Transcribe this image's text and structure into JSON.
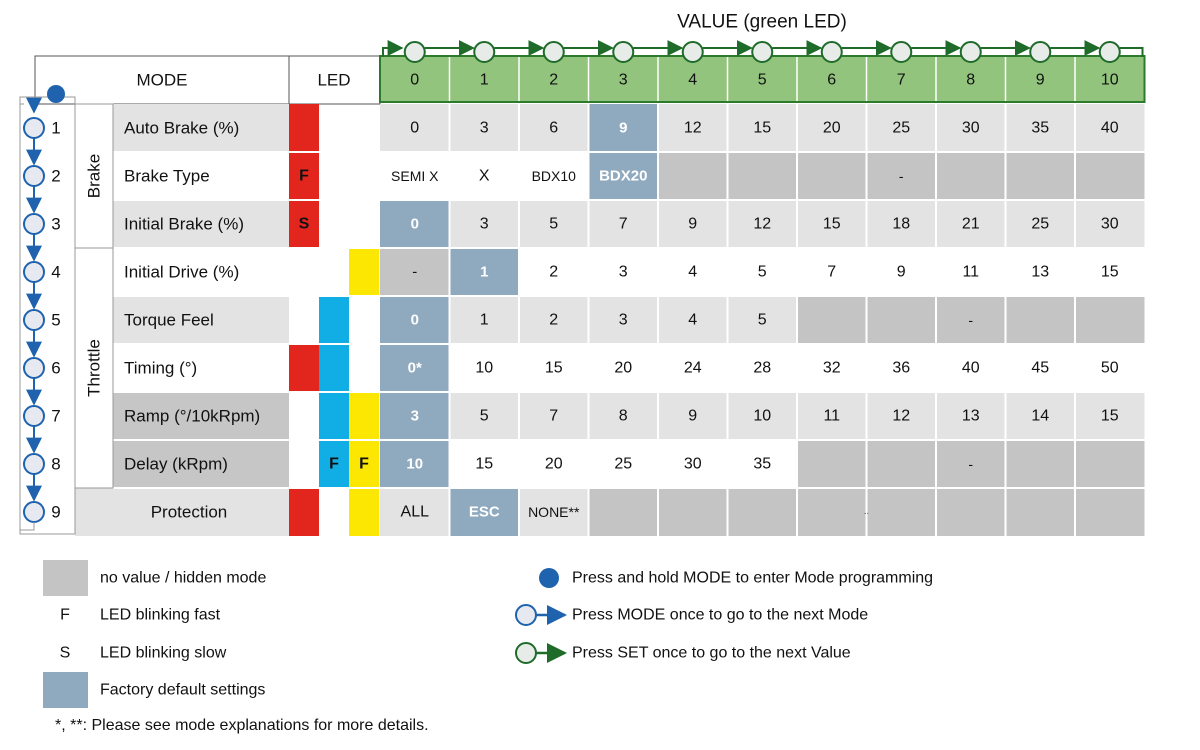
{
  "title": "VALUE (green LED)",
  "colors": {
    "green": "#93c47d",
    "green_border": "#2d7a2d",
    "green_dark": "#1f6b2a",
    "blue": "#1f62ad",
    "gray_row": "#e3e3e3",
    "gray_label": "#c6c6c6",
    "hidden": "#c4c4c4",
    "default": "#8faabf",
    "red": "#e3261d",
    "cyan": "#11aee6",
    "yellow": "#fbe702"
  },
  "headers": {
    "mode": "MODE",
    "led": "LED"
  },
  "groups": {
    "brake": "Brake",
    "throttle": "Throttle"
  },
  "value_columns": [
    "0",
    "1",
    "2",
    "3",
    "4",
    "5",
    "6",
    "7",
    "8",
    "9",
    "10"
  ],
  "rows": [
    {
      "num": "1",
      "label": "Auto Brake (%)",
      "shade": true,
      "label_shade": "light",
      "leds": [
        {
          "color": "red",
          "text": ""
        },
        {
          "color": "",
          "text": ""
        },
        {
          "color": "",
          "text": ""
        }
      ],
      "cells": [
        "0",
        "3",
        "6",
        "9",
        "12",
        "15",
        "20",
        "25",
        "30",
        "35",
        "40"
      ],
      "default_index": 3,
      "hidden_from": null,
      "hidden_text": ""
    },
    {
      "num": "2",
      "label": "Brake Type",
      "shade": false,
      "label_shade": "none",
      "leds": [
        {
          "color": "red",
          "text": "F"
        },
        {
          "color": "",
          "text": ""
        },
        {
          "color": "",
          "text": ""
        }
      ],
      "cells": [
        "SEMI X",
        "X",
        "BDX10",
        "BDX20"
      ],
      "default_index": 3,
      "hidden_from": 4,
      "hidden_text": "-"
    },
    {
      "num": "3",
      "label": "Initial Brake (%)",
      "shade": true,
      "label_shade": "light",
      "leds": [
        {
          "color": "red",
          "text": "S"
        },
        {
          "color": "",
          "text": ""
        },
        {
          "color": "",
          "text": ""
        }
      ],
      "cells": [
        "0",
        "3",
        "5",
        "7",
        "9",
        "12",
        "15",
        "18",
        "21",
        "25",
        "30"
      ],
      "default_index": 0,
      "hidden_from": null,
      "hidden_text": ""
    },
    {
      "num": "4",
      "label": "Initial Drive (%)",
      "shade": false,
      "label_shade": "none",
      "leds": [
        {
          "color": "",
          "text": ""
        },
        {
          "color": "",
          "text": ""
        },
        {
          "color": "yellow",
          "text": ""
        }
      ],
      "cells": [
        "-",
        "1",
        "2",
        "3",
        "4",
        "5",
        "7",
        "9",
        "11",
        "13",
        "15"
      ],
      "default_index": 1,
      "hidden_index": 0,
      "hidden_from": null,
      "hidden_text": ""
    },
    {
      "num": "5",
      "label": "Torque Feel",
      "shade": true,
      "label_shade": "light",
      "leds": [
        {
          "color": "",
          "text": ""
        },
        {
          "color": "cyan",
          "text": ""
        },
        {
          "color": "",
          "text": ""
        }
      ],
      "cells": [
        "0",
        "1",
        "2",
        "3",
        "4",
        "5"
      ],
      "default_index": 0,
      "hidden_from": 6,
      "hidden_text": "-"
    },
    {
      "num": "6",
      "label": "Timing (°)",
      "shade": false,
      "label_shade": "none",
      "leds": [
        {
          "color": "red",
          "text": ""
        },
        {
          "color": "cyan",
          "text": ""
        },
        {
          "color": "",
          "text": ""
        }
      ],
      "cells": [
        "0*",
        "10",
        "15",
        "20",
        "24",
        "28",
        "32",
        "36",
        "40",
        "45",
        "50"
      ],
      "default_index": 0,
      "hidden_from": null,
      "hidden_text": ""
    },
    {
      "num": "7",
      "label": "Ramp (°/10kRpm)",
      "shade": true,
      "label_shade": "dark",
      "leds": [
        {
          "color": "",
          "text": ""
        },
        {
          "color": "cyan",
          "text": ""
        },
        {
          "color": "yellow",
          "text": ""
        }
      ],
      "cells": [
        "3",
        "5",
        "7",
        "8",
        "9",
        "10",
        "11",
        "12",
        "13",
        "14",
        "15"
      ],
      "default_index": 0,
      "hidden_from": null,
      "hidden_text": ""
    },
    {
      "num": "8",
      "label": "Delay (kRpm)",
      "shade": false,
      "label_shade": "dark",
      "leds": [
        {
          "color": "",
          "text": ""
        },
        {
          "color": "cyan",
          "text": "F"
        },
        {
          "color": "yellow",
          "text": "F"
        }
      ],
      "cells": [
        "10",
        "15",
        "20",
        "25",
        "30",
        "35"
      ],
      "default_index": 0,
      "hidden_from": 6,
      "hidden_text": "-"
    },
    {
      "num": "9",
      "label": "Protection",
      "shade": true,
      "label_shade": "light",
      "leds": [
        {
          "color": "red",
          "text": ""
        },
        {
          "color": "",
          "text": ""
        },
        {
          "color": "yellow",
          "text": ""
        }
      ],
      "cells": [
        "ALL",
        "ESC",
        "NONE**"
      ],
      "default_index": 1,
      "hidden_from": 3,
      "hidden_text": "-"
    }
  ],
  "legend": {
    "hidden": "no value / hidden mode",
    "f_symbol": "F",
    "f_text": "LED blinking fast",
    "s_symbol": "S",
    "s_text": "LED blinking slow",
    "default": "Factory default settings",
    "hold": "Press and hold MODE to enter Mode programming",
    "mode_once": "Press MODE once to go to the next Mode",
    "set_once": "Press SET once to go to the next Value"
  },
  "note": "*, **: Please see mode explanations for more details."
}
